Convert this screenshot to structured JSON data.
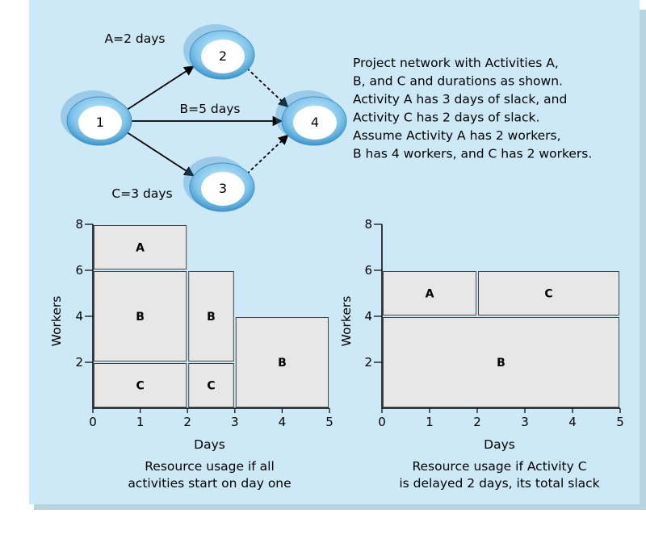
{
  "colors": {
    "panel": "#cde9f8",
    "panel_shadow": "#b9d3e2",
    "node_outer": "#7fc4ea",
    "node_dark": "#3d93c9",
    "node_inner": "#ffffff",
    "bar_fill": "#e7e7e7",
    "bar_stroke": "#444444"
  },
  "network": {
    "nodes": [
      {
        "id": "n1",
        "label": "1"
      },
      {
        "id": "n2",
        "label": "2"
      },
      {
        "id": "n3",
        "label": "3"
      },
      {
        "id": "n4",
        "label": "4"
      }
    ],
    "edges": [
      {
        "from": "n1",
        "to": "n2",
        "style": "solid",
        "label": "A=2 days"
      },
      {
        "from": "n1",
        "to": "n4",
        "style": "solid",
        "label": "B=5 days"
      },
      {
        "from": "n1",
        "to": "n3",
        "style": "solid",
        "label": "C=3 days"
      },
      {
        "from": "n2",
        "to": "n4",
        "style": "dashed",
        "label": ""
      },
      {
        "from": "n3",
        "to": "n4",
        "style": "dashed",
        "label": ""
      }
    ]
  },
  "description_lines": [
    "Project network with Activities A,",
    "B, and C and durations as shown.",
    "Activity A has 3 days of slack, and",
    "Activity C has 2 days of slack.",
    "Assume Activity A has  2 workers,",
    "B has 4 workers, and C has 2 workers."
  ],
  "chart_data": [
    {
      "type": "bar",
      "xlabel": "Days",
      "ylabel": "Workers",
      "xlim": [
        0,
        5
      ],
      "ylim": [
        0,
        8
      ],
      "xticks": [
        "0",
        "1",
        "2",
        "3",
        "4",
        "5"
      ],
      "yticks": [
        "2",
        "4",
        "6",
        "8"
      ],
      "blocks": [
        {
          "label": "C",
          "x0": 0,
          "x1": 2,
          "y0": 0,
          "y1": 2
        },
        {
          "label": "B",
          "x0": 0,
          "x1": 2,
          "y0": 2,
          "y1": 6
        },
        {
          "label": "A",
          "x0": 0,
          "x1": 2,
          "y0": 6,
          "y1": 8
        },
        {
          "label": "C",
          "x0": 2,
          "x1": 3,
          "y0": 0,
          "y1": 2
        },
        {
          "label": "B",
          "x0": 2,
          "x1": 3,
          "y0": 2,
          "y1": 6
        },
        {
          "label": "B",
          "x0": 3,
          "x1": 5,
          "y0": 0,
          "y1": 4
        }
      ],
      "caption_lines": [
        "Resource usage if all",
        "activities start on day one"
      ]
    },
    {
      "type": "bar",
      "xlabel": "Days",
      "ylabel": "Workers",
      "xlim": [
        0,
        5
      ],
      "ylim": [
        0,
        8
      ],
      "xticks": [
        "0",
        "1",
        "2",
        "3",
        "4",
        "5"
      ],
      "yticks": [
        "2",
        "4",
        "6",
        "8"
      ],
      "blocks": [
        {
          "label": "B",
          "x0": 0,
          "x1": 5,
          "y0": 0,
          "y1": 4
        },
        {
          "label": "A",
          "x0": 0,
          "x1": 2,
          "y0": 4,
          "y1": 6
        },
        {
          "label": "C",
          "x0": 2,
          "x1": 5,
          "y0": 4,
          "y1": 6
        }
      ],
      "caption_lines": [
        "Resource usage if Activity C",
        "is delayed 2 days, its total slack"
      ]
    }
  ]
}
